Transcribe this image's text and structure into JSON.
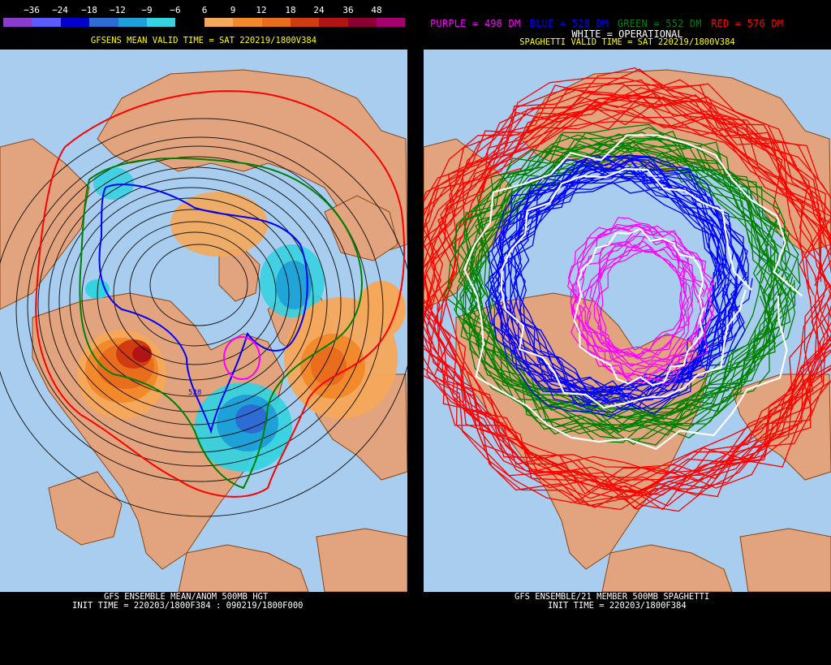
{
  "left": {
    "legend_values": [
      "−36",
      "−24",
      "−18",
      "−12",
      "−9",
      "−6",
      "6",
      "9",
      "12",
      "18",
      "24",
      "36",
      "48"
    ],
    "legend_colors": [
      "#8a3ccd",
      "#5a5aff",
      "#0000cc",
      "#2c6cd4",
      "#1ea0d8",
      "#35d2e0",
      "#000000",
      "#f5a85a",
      "#f28a2c",
      "#e86d1c",
      "#d13b10",
      "#b01414",
      "#8a0032",
      "#a5006e"
    ],
    "title": "GFSENS MEAN VALID TIME = SAT 220219/1800V384",
    "contour_label": "528",
    "footer_line1": "GFS ENSEMBLE MEAN/ANOM 500MB HGT",
    "footer_line2": "INIT TIME = 220203/1800F384 : 090219/1800F000"
  },
  "right": {
    "legend": {
      "purple": "PURPLE = 498 DM",
      "blue": "BLUE = 528 DM",
      "green": "GREEN = 552 DM",
      "red": "RED = 576 DM",
      "white": "WHITE = OPERATIONAL"
    },
    "title": "SPAGHETTI VALID TIME = SAT 220219/1800V384",
    "footer_line1": "GFS ENSEMBLE/21 MEMBER 500MB SPAGHETTI",
    "footer_line2": "INIT TIME = 220203/1800F384"
  },
  "colors": {
    "ocean": "#a8cdef",
    "land": "#e2a47e",
    "coast": "#8b4513",
    "purple": "#ff00ff",
    "blue": "#0000ff",
    "green": "#008000",
    "red": "#ff0000",
    "white": "#ffffff"
  }
}
